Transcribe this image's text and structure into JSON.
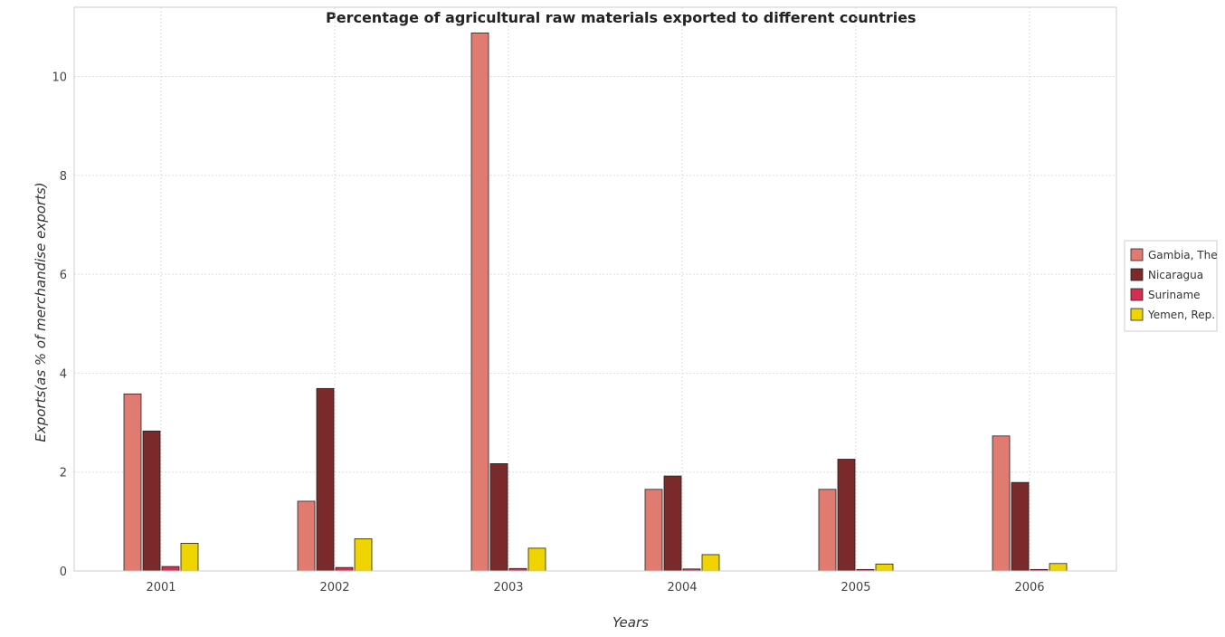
{
  "chart_data": {
    "type": "bar",
    "title": "Percentage of agricultural raw materials exported to different countries",
    "xlabel": "Years",
    "ylabel": "Exports(as % of merchandise exports)",
    "categories": [
      "2001",
      "2002",
      "2003",
      "2004",
      "2005",
      "2006"
    ],
    "ylim": [
      0,
      11.4
    ],
    "yticks": [
      0,
      2,
      4,
      6,
      8,
      10
    ],
    "ytick_labels": [
      "0",
      "2",
      "4",
      "6",
      "8",
      "10"
    ],
    "grid": true,
    "legend_position": "right",
    "series": [
      {
        "name": "Gambia, The",
        "color": "#e07b72",
        "values": [
          3.58,
          1.41,
          10.88,
          1.65,
          1.65,
          2.73
        ]
      },
      {
        "name": "Nicaragua",
        "color": "#7a2a2a",
        "values": [
          2.83,
          3.69,
          2.17,
          1.92,
          2.26,
          1.79
        ]
      },
      {
        "name": "Suriname",
        "color": "#d42f52",
        "values": [
          0.09,
          0.07,
          0.05,
          0.04,
          0.03,
          0.03
        ]
      },
      {
        "name": "Yemen, Rep.",
        "color": "#f0d400",
        "values": [
          0.56,
          0.65,
          0.46,
          0.33,
          0.14,
          0.15
        ]
      }
    ]
  }
}
